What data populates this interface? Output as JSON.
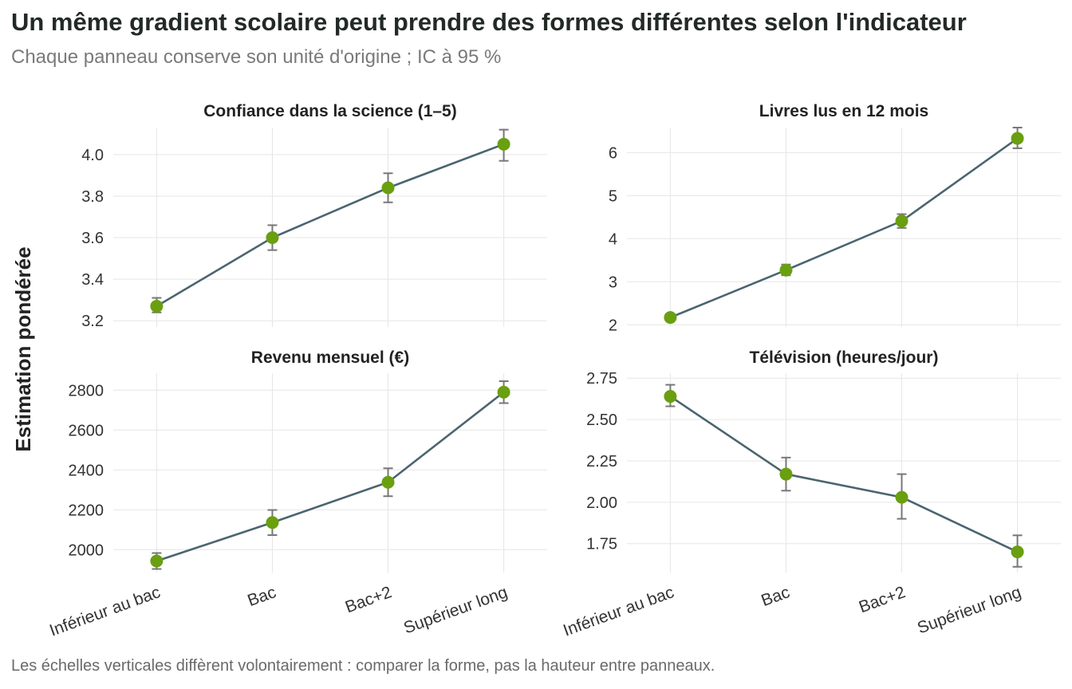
{
  "title": "Un même gradient scolaire peut prendre des formes différentes selon l'indicateur",
  "subtitle": "Chaque panneau conserve son unité d'origine ; IC à 95 %",
  "caption": "Les échelles verticales diffèrent volontairement : comparer la forme, pas la hauteur entre panneaux.",
  "colors": {
    "line": "#4b6470",
    "point": "#6a9f0f",
    "errorbar": "#777777",
    "grid": "#e6e6e6"
  },
  "chart_data": {
    "type": "line",
    "ylabel": "Estimation pondérée",
    "categories": [
      "Inférieur au bac",
      "Bac",
      "Bac+2",
      "Supérieur long"
    ],
    "panels": [
      {
        "title": "Confiance dans la science (1–5)",
        "values": [
          3.27,
          3.6,
          3.84,
          4.05
        ],
        "ci_low": [
          3.24,
          3.54,
          3.77,
          3.97
        ],
        "ci_high": [
          3.31,
          3.66,
          3.91,
          4.12
        ],
        "ylim": [
          3.17,
          4.13
        ],
        "yticks": [
          3.2,
          3.4,
          3.6,
          3.8,
          4.0
        ],
        "yticks_labels": [
          "3.2",
          "3.4",
          "3.6",
          "3.8",
          "4.0"
        ]
      },
      {
        "title": "Livres lus en 12 mois",
        "values": [
          2.17,
          3.27,
          4.41,
          6.33
        ],
        "ci_low": [
          2.1,
          3.15,
          4.25,
          6.1
        ],
        "ci_high": [
          2.24,
          3.4,
          4.57,
          6.58
        ],
        "ylim": [
          1.95,
          6.58
        ],
        "yticks": [
          2,
          3,
          4,
          5,
          6
        ],
        "yticks_labels": [
          "2",
          "3",
          "4",
          "5",
          "6"
        ]
      },
      {
        "title": "Revenu mensuel (€)",
        "values": [
          1943,
          2136,
          2338,
          2790
        ],
        "ci_low": [
          1903,
          2073,
          2268,
          2735
        ],
        "ci_high": [
          1983,
          2199,
          2408,
          2845
        ],
        "ylim": [
          1885,
          2885
        ],
        "yticks": [
          2000,
          2200,
          2400,
          2600,
          2800
        ],
        "yticks_labels": [
          "2000",
          "2200",
          "2400",
          "2600",
          "2800"
        ]
      },
      {
        "title": "Télévision (heures/jour)",
        "values": [
          2.64,
          2.17,
          2.03,
          1.7
        ],
        "ci_low": [
          2.58,
          2.07,
          1.9,
          1.61
        ],
        "ci_high": [
          2.71,
          2.27,
          2.17,
          1.8
        ],
        "ylim": [
          1.575,
          2.78
        ],
        "yticks": [
          1.75,
          2.0,
          2.25,
          2.5,
          2.75
        ],
        "yticks_labels": [
          "1.75",
          "2.00",
          "2.25",
          "2.50",
          "2.75"
        ]
      }
    ]
  }
}
